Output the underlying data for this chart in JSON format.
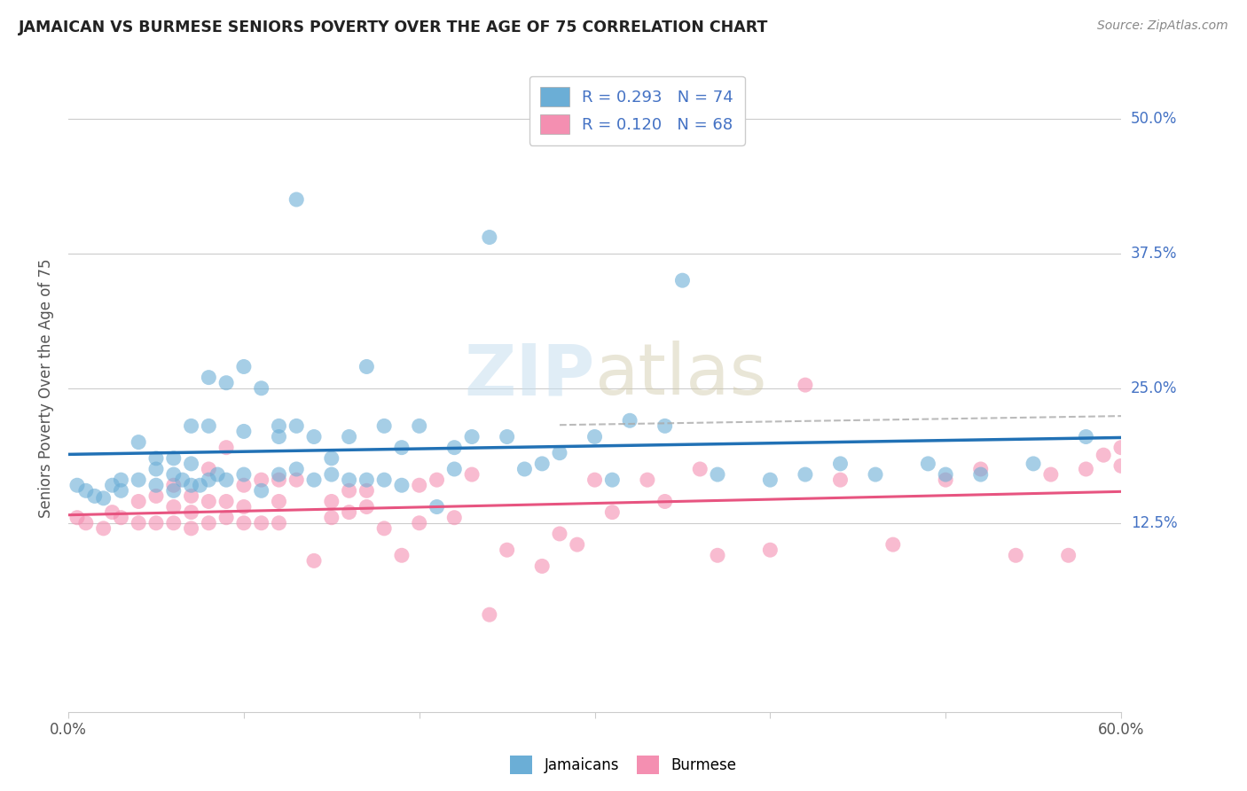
{
  "title": "JAMAICAN VS BURMESE SENIORS POVERTY OVER THE AGE OF 75 CORRELATION CHART",
  "source": "Source: ZipAtlas.com",
  "ylabel": "Seniors Poverty Over the Age of 75",
  "xlim": [
    0.0,
    0.6
  ],
  "ylim": [
    -0.05,
    0.55
  ],
  "xticks": [
    0.0,
    0.1,
    0.2,
    0.3,
    0.4,
    0.5,
    0.6
  ],
  "xticklabels": [
    "0.0%",
    "",
    "",
    "",
    "",
    "",
    "60.0%"
  ],
  "ytick_positions": [
    0.125,
    0.25,
    0.375,
    0.5
  ],
  "ytick_labels": [
    "12.5%",
    "25.0%",
    "37.5%",
    "50.0%"
  ],
  "watermark": "ZIPatlas",
  "legend_R_jamaican": "0.293",
  "legend_N_jamaican": "74",
  "legend_R_burmese": "0.120",
  "legend_N_burmese": "68",
  "jamaican_color": "#6baed6",
  "burmese_color": "#f48fb1",
  "jamaican_line_color": "#2171b5",
  "burmese_line_color": "#e75480",
  "burmese_dashed_color": "#aec7e8",
  "jamaican_x": [
    0.005,
    0.01,
    0.015,
    0.02,
    0.025,
    0.03,
    0.03,
    0.04,
    0.04,
    0.05,
    0.05,
    0.05,
    0.06,
    0.06,
    0.06,
    0.065,
    0.07,
    0.07,
    0.07,
    0.075,
    0.08,
    0.08,
    0.08,
    0.085,
    0.09,
    0.09,
    0.1,
    0.1,
    0.1,
    0.11,
    0.11,
    0.12,
    0.12,
    0.12,
    0.13,
    0.13,
    0.13,
    0.14,
    0.14,
    0.15,
    0.15,
    0.16,
    0.16,
    0.17,
    0.17,
    0.18,
    0.18,
    0.19,
    0.19,
    0.2,
    0.21,
    0.22,
    0.22,
    0.23,
    0.24,
    0.25,
    0.26,
    0.27,
    0.28,
    0.3,
    0.31,
    0.32,
    0.34,
    0.35,
    0.37,
    0.4,
    0.42,
    0.44,
    0.46,
    0.49,
    0.5,
    0.52,
    0.55,
    0.58
  ],
  "jamaican_y": [
    0.16,
    0.155,
    0.15,
    0.148,
    0.16,
    0.155,
    0.165,
    0.165,
    0.2,
    0.16,
    0.175,
    0.185,
    0.155,
    0.17,
    0.185,
    0.165,
    0.16,
    0.18,
    0.215,
    0.16,
    0.165,
    0.215,
    0.26,
    0.17,
    0.165,
    0.255,
    0.17,
    0.21,
    0.27,
    0.155,
    0.25,
    0.17,
    0.205,
    0.215,
    0.175,
    0.215,
    0.425,
    0.165,
    0.205,
    0.17,
    0.185,
    0.165,
    0.205,
    0.165,
    0.27,
    0.165,
    0.215,
    0.16,
    0.195,
    0.215,
    0.14,
    0.175,
    0.195,
    0.205,
    0.39,
    0.205,
    0.175,
    0.18,
    0.19,
    0.205,
    0.165,
    0.22,
    0.215,
    0.35,
    0.17,
    0.165,
    0.17,
    0.18,
    0.17,
    0.18,
    0.17,
    0.17,
    0.18,
    0.205
  ],
  "burmese_x": [
    0.005,
    0.01,
    0.02,
    0.025,
    0.03,
    0.04,
    0.04,
    0.05,
    0.05,
    0.06,
    0.06,
    0.06,
    0.07,
    0.07,
    0.07,
    0.08,
    0.08,
    0.08,
    0.09,
    0.09,
    0.09,
    0.1,
    0.1,
    0.1,
    0.11,
    0.11,
    0.12,
    0.12,
    0.12,
    0.13,
    0.14,
    0.15,
    0.15,
    0.16,
    0.16,
    0.17,
    0.17,
    0.18,
    0.19,
    0.2,
    0.2,
    0.21,
    0.22,
    0.23,
    0.24,
    0.25,
    0.27,
    0.28,
    0.29,
    0.3,
    0.31,
    0.33,
    0.34,
    0.36,
    0.37,
    0.4,
    0.42,
    0.44,
    0.47,
    0.5,
    0.52,
    0.54,
    0.56,
    0.57,
    0.58,
    0.59,
    0.6,
    0.6
  ],
  "burmese_y": [
    0.13,
    0.125,
    0.12,
    0.135,
    0.13,
    0.125,
    0.145,
    0.125,
    0.15,
    0.125,
    0.14,
    0.16,
    0.12,
    0.135,
    0.15,
    0.125,
    0.145,
    0.175,
    0.13,
    0.145,
    0.195,
    0.125,
    0.14,
    0.16,
    0.125,
    0.165,
    0.125,
    0.145,
    0.165,
    0.165,
    0.09,
    0.13,
    0.145,
    0.135,
    0.155,
    0.14,
    0.155,
    0.12,
    0.095,
    0.125,
    0.16,
    0.165,
    0.13,
    0.17,
    0.04,
    0.1,
    0.085,
    0.115,
    0.105,
    0.165,
    0.135,
    0.165,
    0.145,
    0.175,
    0.095,
    0.1,
    0.253,
    0.165,
    0.105,
    0.165,
    0.175,
    0.095,
    0.17,
    0.095,
    0.175,
    0.188,
    0.195,
    0.178
  ],
  "background_color": "#ffffff",
  "grid_color": "#cccccc",
  "right_label_color": "#4472c4",
  "title_color": "#222222",
  "source_color": "#888888"
}
